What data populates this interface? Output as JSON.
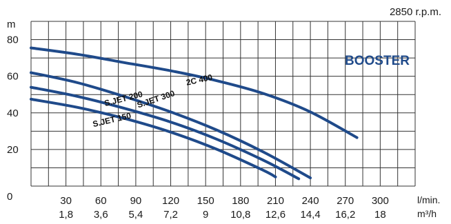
{
  "chart_data": {
    "type": "line",
    "speed_label": "2850 r.p.m.",
    "badge": "BOOSTER",
    "ylabel": "m",
    "ylim": [
      0,
      90
    ],
    "yticks": [
      20,
      40,
      60,
      80
    ],
    "y_zero_label": "0",
    "xlim": [
      0,
      330
    ],
    "x_ticks_lmin": [
      "30",
      "60",
      "90",
      "120",
      "150",
      "180",
      "210",
      "240",
      "270",
      "300"
    ],
    "x_ticks_m3h": [
      "1,8",
      "3,6",
      "5,4",
      "7,2",
      "9",
      "10,8",
      "12,6",
      "14,4",
      "16,2",
      "18"
    ],
    "x_unit_lmin": "l/min.",
    "x_unit_m3h": "m³/h",
    "series": [
      {
        "name": "2C 400",
        "x": [
          0,
          40,
          80,
          120,
          160,
          200,
          240,
          280
        ],
        "y": [
          75.5,
          72,
          67.5,
          63,
          57.5,
          50.5,
          40.5,
          26.5
        ]
      },
      {
        "name": "S.JET 300",
        "x": [
          0,
          40,
          80,
          120,
          160,
          200,
          240
        ],
        "y": [
          62,
          56.5,
          49,
          40.5,
          30.5,
          18.5,
          4.5
        ]
      },
      {
        "name": "S.JET 200",
        "x": [
          0,
          40,
          80,
          120,
          160,
          200,
          230
        ],
        "y": [
          54,
          49,
          42.5,
          35,
          25.5,
          14,
          4
        ]
      },
      {
        "name": "S.JET 150",
        "x": [
          0,
          40,
          80,
          120,
          160,
          200,
          210
        ],
        "y": [
          47.5,
          43,
          37,
          29.5,
          20,
          8.5,
          5
        ]
      }
    ],
    "colors": {
      "curve": "#1f4a8a",
      "badge": "#1f4a8a",
      "grid": "#333333",
      "text": "#1a1a1a"
    }
  }
}
